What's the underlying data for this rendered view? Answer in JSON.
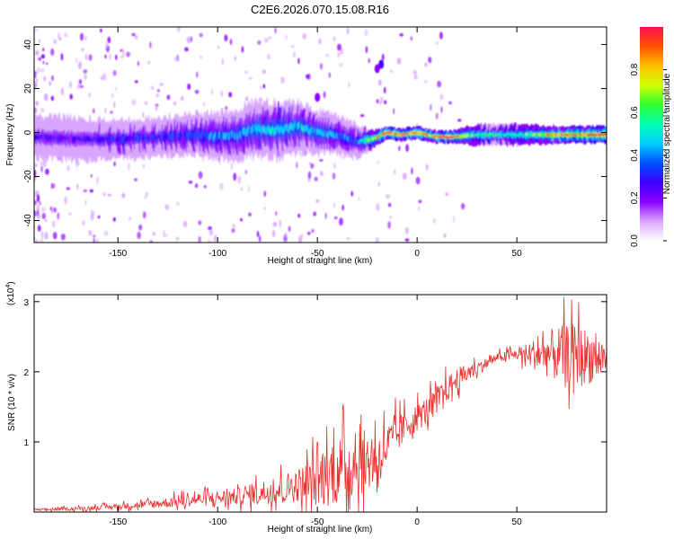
{
  "title": "C2E6.2026.070.15.08.R16",
  "colors": {
    "line": "#e8312e",
    "axis": "#000000",
    "background": "#ffffff"
  },
  "chart_data": [
    {
      "type": "heatmap",
      "name": "spectrogram",
      "xlabel": "Height of straight line (km)",
      "ylabel": "Frequency (Hz)",
      "xlim": [
        -192,
        95
      ],
      "ylim": [
        -50,
        48
      ],
      "xticks": [
        -150,
        -100,
        -50,
        0,
        50
      ],
      "yticks": [
        -40,
        -20,
        0,
        20,
        40
      ],
      "ridge": {
        "x": [
          -192,
          -170,
          -150,
          -130,
          -110,
          -100,
          -90,
          -80,
          -70,
          -60,
          -50,
          -40,
          -30,
          -22,
          -15,
          -8,
          0,
          5,
          10,
          18,
          30,
          50,
          70,
          95
        ],
        "freq": [
          -2,
          -3,
          -3,
          -2,
          -1,
          -2,
          -1,
          2,
          1,
          3,
          0,
          -1,
          -4,
          -3,
          0,
          -1,
          0,
          -1,
          -2,
          -2,
          -1,
          -1,
          -1,
          -1
        ],
        "amplitude": [
          0.25,
          0.25,
          0.3,
          0.3,
          0.35,
          0.4,
          0.4,
          0.45,
          0.5,
          0.45,
          0.45,
          0.4,
          0.35,
          0.75,
          0.95,
          0.9,
          0.9,
          0.85,
          0.9,
          0.95,
          0.55,
          0.55,
          0.85,
          0.95
        ],
        "spread_hz": [
          10,
          10,
          9,
          9,
          10,
          11,
          12,
          13,
          13,
          12,
          10,
          9,
          8,
          4,
          3,
          3,
          3,
          3,
          3,
          3,
          5,
          5,
          4,
          4
        ]
      },
      "blobs": [
        {
          "x": -18,
          "freq": 31,
          "amplitude": 0.3
        },
        {
          "x": -20,
          "freq": 29,
          "amplitude": 0.2
        },
        {
          "x": -50,
          "freq": 16,
          "amplitude": 0.15
        }
      ]
    },
    {
      "type": "line",
      "name": "snr",
      "xlabel": "Height of straight line (km)",
      "ylabel": "SNR (10 * v/v)",
      "yscale_label": "(x10",
      "yscale_exponent": "4",
      "xlim": [
        -192,
        95
      ],
      "ylim": [
        0,
        3.1
      ],
      "xticks": [
        -150,
        -100,
        -50,
        0,
        50
      ],
      "yticks": [
        1,
        2,
        3
      ],
      "envelope_x": [
        -192,
        -170,
        -150,
        -130,
        -110,
        -90,
        -70,
        -60,
        -50,
        -40,
        -30,
        -20,
        -15,
        -10,
        -5,
        0,
        5,
        10,
        20,
        30,
        40,
        50,
        60,
        70,
        80,
        90,
        95
      ],
      "envelope_y": [
        0.03,
        0.05,
        0.08,
        0.12,
        0.18,
        0.22,
        0.32,
        0.38,
        0.45,
        0.6,
        0.7,
        0.75,
        0.95,
        1.1,
        1.25,
        1.35,
        1.45,
        1.6,
        1.9,
        2.05,
        2.2,
        2.25,
        2.25,
        2.25,
        2.25,
        2.2,
        2.2
      ],
      "noise_amplitude": [
        0.02,
        0.03,
        0.05,
        0.08,
        0.12,
        0.15,
        0.25,
        0.3,
        0.5,
        0.6,
        0.6,
        0.5,
        0.4,
        0.35,
        0.25,
        0.25,
        0.25,
        0.25,
        0.2,
        0.12,
        0.08,
        0.1,
        0.3,
        0.5,
        0.55,
        0.45,
        0.3
      ]
    }
  ],
  "colorbar": {
    "label": "Normalized spectral amplitude",
    "range": [
      0,
      1
    ],
    "ticks": [
      "0.0",
      "0.2",
      "0.4",
      "0.6",
      "0.8"
    ],
    "stops": [
      "#ffffff",
      "#d9a6ff",
      "#8a00ff",
      "#3c00ff",
      "#0050ff",
      "#00d0ff",
      "#00ffb0",
      "#30ff30",
      "#d0ff00",
      "#ffc000",
      "#ff5000",
      "#ff1050"
    ]
  }
}
